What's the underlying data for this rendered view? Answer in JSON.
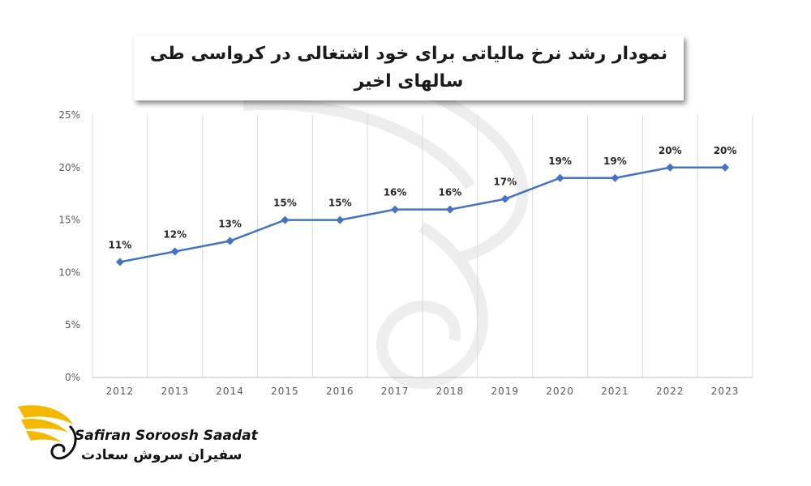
{
  "chart_data": {
    "type": "line",
    "title": "نمودار رشد نرخ مالیاتی برای خود اشتغالی در کرواسی طی سالهای اخیر",
    "categories": [
      "2012",
      "2013",
      "2014",
      "2015",
      "2016",
      "2017",
      "2018",
      "2019",
      "2020",
      "2021",
      "2022",
      "2023"
    ],
    "values": [
      11,
      12,
      13,
      15,
      15,
      16,
      16,
      17,
      19,
      19,
      20,
      20
    ],
    "data_labels": [
      "11%",
      "12%",
      "13%",
      "15%",
      "15%",
      "16%",
      "16%",
      "17%",
      "19%",
      "19%",
      "20%",
      "20%"
    ],
    "y_ticks": [
      "0%",
      "5%",
      "10%",
      "15%",
      "20%",
      "25%"
    ],
    "ylim": [
      0,
      25
    ],
    "grid": "vertical",
    "legend": "none",
    "series_color": "#4472C4",
    "xlabel": "",
    "ylabel": ""
  },
  "logo": {
    "name_en": "Safiran Soroosh Saadat",
    "name_fa": "سفیران سروش سعادت",
    "colors": [
      "#F5B800",
      "#111111"
    ]
  }
}
